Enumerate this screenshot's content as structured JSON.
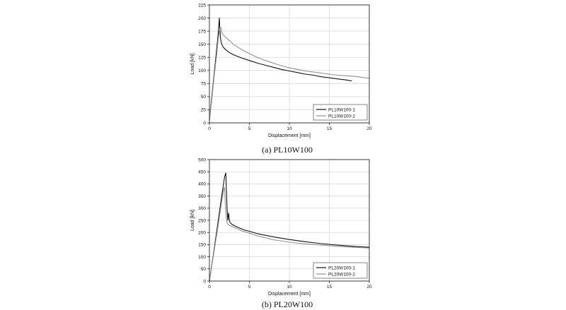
{
  "chart_data": [
    {
      "type": "line",
      "caption": "(a)  PL10W100",
      "xlabel": "Displacement [mm]",
      "ylabel": "Load [kN]",
      "xlim": [
        0,
        20
      ],
      "ylim": [
        0,
        225
      ],
      "xticks": [
        0,
        5,
        10,
        15,
        20
      ],
      "yticks": [
        0,
        25,
        50,
        75,
        100,
        125,
        150,
        175,
        200,
        225
      ],
      "grid": true,
      "legend": "bottom-right",
      "series": [
        {
          "name": "PL10W100-1",
          "color": "#111111",
          "x": [
            0,
            0.3,
            0.6,
            0.9,
            1.1,
            1.2,
            1.25,
            1.3,
            1.35,
            1.4,
            1.5,
            1.7,
            2.0,
            2.5,
            3.0,
            4.0,
            5.0,
            6.0,
            7.0,
            8.0,
            9.0,
            10.0,
            11.0,
            12.0,
            13.0,
            14.0,
            15.0,
            16.0,
            17.0,
            17.8
          ],
          "y": [
            5,
            50,
            95,
            140,
            170,
            192,
            200,
            180,
            168,
            160,
            152,
            145,
            140,
            134,
            130,
            124,
            119,
            114,
            110,
            106,
            102,
            99,
            96,
            93,
            91,
            88,
            86,
            84,
            82,
            80
          ]
        },
        {
          "name": "PL10W100-2",
          "color": "#8f8f8f",
          "x": [
            0,
            0.3,
            0.6,
            0.9,
            1.1,
            1.3,
            1.45,
            1.55,
            1.7,
            2.0,
            2.5,
            3.0,
            4.0,
            5.0,
            6.0,
            7.0,
            8.0,
            9.0,
            10.0,
            11.0,
            12.0,
            13.0,
            14.0,
            15.0,
            16.0,
            17.0,
            18.0,
            19.0,
            20.0
          ],
          "y": [
            5,
            45,
            90,
            130,
            160,
            180,
            182,
            172,
            168,
            164,
            157,
            150,
            140,
            132,
            125,
            119,
            114,
            109,
            105,
            102,
            99,
            97,
            95,
            93,
            91,
            90,
            89,
            87,
            85
          ]
        }
      ]
    },
    {
      "type": "line",
      "caption": "(b)  PL20W100",
      "xlabel": "Displacement [mm]",
      "ylabel": "Load [kN]",
      "xlim": [
        0,
        20
      ],
      "ylim": [
        0,
        500
      ],
      "xticks": [
        0,
        5,
        10,
        15,
        20
      ],
      "yticks": [
        0,
        50,
        100,
        150,
        200,
        250,
        300,
        350,
        400,
        450,
        500
      ],
      "grid": true,
      "legend": "bottom-right",
      "series": [
        {
          "name": "PL20W100-1",
          "color": "#111111",
          "x": [
            0,
            0.5,
            1.0,
            1.5,
            1.9,
            2.05,
            2.2,
            2.3,
            2.4,
            2.5,
            2.6,
            2.8,
            3.0,
            3.5,
            4.0,
            4.5,
            5.0,
            6.0,
            8.0,
            10.0,
            12.0,
            14.0,
            16.0,
            18.0,
            20.0
          ],
          "y": [
            0,
            110,
            225,
            340,
            430,
            445,
            300,
            250,
            280,
            248,
            240,
            234,
            230,
            222,
            215,
            209,
            205,
            195,
            182,
            171,
            162,
            154,
            148,
            143,
            139
          ]
        },
        {
          "name": "PL20W100-2",
          "color": "#8f8f8f",
          "x": [
            0,
            0.5,
            1.0,
            1.5,
            1.8,
            1.9,
            2.0,
            2.1,
            2.2,
            2.4,
            2.6,
            3.0,
            3.5,
            4.0,
            5.0,
            6.0,
            8.0,
            10.0,
            12.0,
            14.0,
            16.0,
            18.0,
            20.0
          ],
          "y": [
            0,
            105,
            210,
            320,
            380,
            385,
            310,
            265,
            240,
            232,
            228,
            222,
            215,
            207,
            197,
            186,
            170,
            160,
            153,
            148,
            143,
            139,
            136
          ]
        }
      ]
    }
  ]
}
